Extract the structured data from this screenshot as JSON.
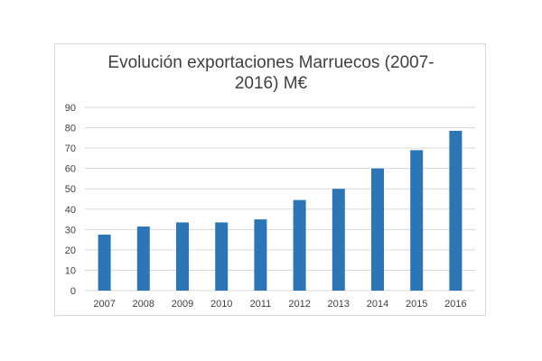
{
  "chart_data": {
    "type": "bar",
    "title_lines": [
      "Evolución exportaciones Marruecos (2007-",
      "2016) M€"
    ],
    "categories": [
      "2007",
      "2008",
      "2009",
      "2010",
      "2011",
      "2012",
      "2013",
      "2014",
      "2015",
      "2016"
    ],
    "values": [
      27.5,
      31.5,
      33.5,
      33.5,
      35,
      44.5,
      50,
      60,
      69,
      78.5
    ],
    "ylim": [
      0,
      90
    ],
    "yticks": [
      "0",
      "10",
      "20",
      "30",
      "40",
      "50",
      "60",
      "70",
      "80",
      "90"
    ],
    "grid": true,
    "legend": "none",
    "bar_color": "#2e75b6",
    "grid_color": "#d9d9d9"
  }
}
